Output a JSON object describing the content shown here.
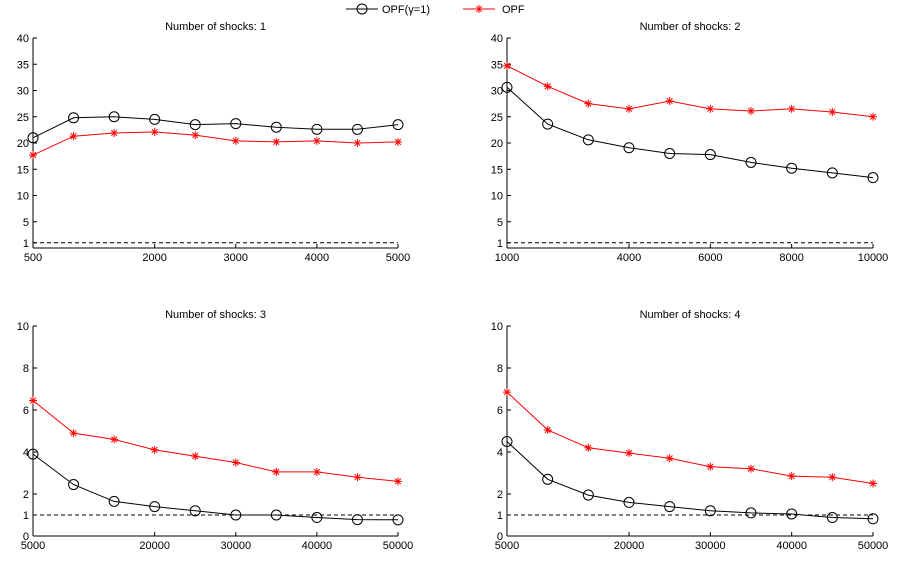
{
  "legend": {
    "placement": "top-center",
    "entries": [
      {
        "label": "OPF(γ=1)",
        "color": "#000000",
        "marker": "circle"
      },
      {
        "label": "OPF",
        "color": "#ff0000",
        "marker": "star"
      }
    ]
  },
  "chart_data": [
    {
      "type": "line",
      "title": "Number of shocks: 1",
      "xlim": [
        500,
        5000
      ],
      "ylim": [
        0,
        40
      ],
      "xticks": [
        500,
        2000,
        3000,
        4000,
        5000
      ],
      "yticks": [
        1,
        5,
        10,
        15,
        20,
        25,
        30,
        35,
        40
      ],
      "grid": false,
      "x": [
        500,
        1000,
        1500,
        2000,
        2500,
        3000,
        3500,
        4000,
        4500,
        5000
      ],
      "series": [
        {
          "name": "OPF(γ=1)",
          "color": "#000000",
          "marker": "circle",
          "values": [
            21.0,
            24.8,
            25.0,
            24.5,
            23.5,
            23.7,
            23.0,
            22.6,
            22.6,
            23.5
          ]
        },
        {
          "name": "OPF",
          "color": "#ff0000",
          "marker": "star",
          "values": [
            17.7,
            21.3,
            21.9,
            22.1,
            21.5,
            20.4,
            20.2,
            20.4,
            20.0,
            20.2
          ]
        }
      ],
      "reference_line": {
        "y": 1,
        "style": "dashed"
      }
    },
    {
      "type": "line",
      "title": "Number of shocks: 2",
      "xlim": [
        1000,
        10000
      ],
      "ylim": [
        0,
        40
      ],
      "xticks": [
        1000,
        4000,
        6000,
        8000,
        10000
      ],
      "yticks": [
        1,
        5,
        10,
        15,
        20,
        25,
        30,
        35,
        40
      ],
      "grid": false,
      "x": [
        1000,
        2000,
        3000,
        4000,
        5000,
        6000,
        7000,
        8000,
        9000,
        10000
      ],
      "series": [
        {
          "name": "OPF(γ=1)",
          "color": "#000000",
          "marker": "circle",
          "values": [
            30.6,
            23.6,
            20.6,
            19.1,
            18.0,
            17.8,
            16.3,
            15.2,
            14.3,
            13.4
          ]
        },
        {
          "name": "OPF",
          "color": "#ff0000",
          "marker": "star",
          "values": [
            34.7,
            30.8,
            27.5,
            26.5,
            28.0,
            26.5,
            26.1,
            26.5,
            25.9,
            25.0
          ]
        }
      ],
      "reference_line": {
        "y": 1,
        "style": "dashed"
      }
    },
    {
      "type": "line",
      "title": "Number of shocks: 3",
      "xlim": [
        5000,
        50000
      ],
      "ylim": [
        0,
        10
      ],
      "xticks": [
        5000,
        20000,
        30000,
        40000,
        50000
      ],
      "yticks": [
        0,
        1,
        2,
        4,
        6,
        8,
        10
      ],
      "grid": false,
      "x": [
        5000,
        10000,
        15000,
        20000,
        25000,
        30000,
        35000,
        40000,
        45000,
        50000
      ],
      "series": [
        {
          "name": "OPF(γ=1)",
          "color": "#000000",
          "marker": "circle",
          "values": [
            3.9,
            2.45,
            1.65,
            1.4,
            1.2,
            1.0,
            1.0,
            0.88,
            0.78,
            0.77
          ]
        },
        {
          "name": "OPF",
          "color": "#ff0000",
          "marker": "star",
          "values": [
            6.45,
            4.9,
            4.6,
            4.1,
            3.8,
            3.5,
            3.05,
            3.05,
            2.8,
            2.6
          ]
        }
      ],
      "reference_line": {
        "y": 1,
        "style": "dashed"
      }
    },
    {
      "type": "line",
      "title": "Number of shocks: 4",
      "xlim": [
        5000,
        50000
      ],
      "ylim": [
        0,
        10
      ],
      "xticks": [
        5000,
        20000,
        30000,
        40000,
        50000
      ],
      "yticks": [
        0,
        1,
        2,
        4,
        6,
        8,
        10
      ],
      "grid": false,
      "x": [
        5000,
        10000,
        15000,
        20000,
        25000,
        30000,
        35000,
        40000,
        45000,
        50000
      ],
      "series": [
        {
          "name": "OPF(γ=1)",
          "color": "#000000",
          "marker": "circle",
          "values": [
            4.5,
            2.7,
            1.95,
            1.6,
            1.4,
            1.2,
            1.1,
            1.05,
            0.88,
            0.82
          ]
        },
        {
          "name": "OPF",
          "color": "#ff0000",
          "marker": "star",
          "values": [
            6.85,
            5.05,
            4.2,
            3.95,
            3.7,
            3.3,
            3.2,
            2.85,
            2.8,
            2.5
          ]
        }
      ],
      "reference_line": {
        "y": 1,
        "style": "dashed"
      }
    }
  ]
}
